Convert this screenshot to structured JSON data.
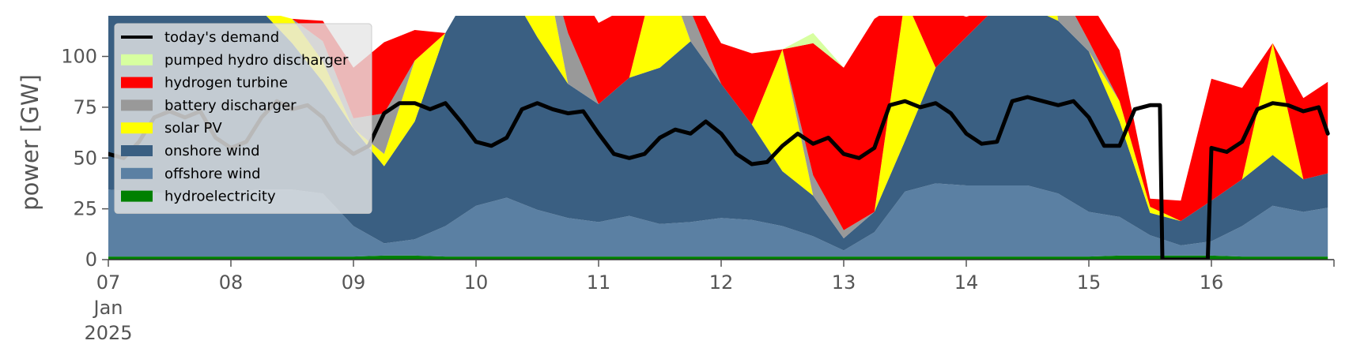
{
  "chart_data": {
    "type": "area",
    "ylabel": "power [GW]",
    "ylim": [
      0,
      120
    ],
    "yticks": [
      0,
      25,
      50,
      75,
      100
    ],
    "xlim": [
      7,
      17
    ],
    "xticks": [
      {
        "x": 7,
        "lines": [
          "07",
          "Jan",
          "2025"
        ]
      },
      {
        "x": 8,
        "lines": [
          "08"
        ]
      },
      {
        "x": 9,
        "lines": [
          "09"
        ]
      },
      {
        "x": 10,
        "lines": [
          "10"
        ]
      },
      {
        "x": 11,
        "lines": [
          "11"
        ]
      },
      {
        "x": 12,
        "lines": [
          "12"
        ]
      },
      {
        "x": 13,
        "lines": [
          "13"
        ]
      },
      {
        "x": 14,
        "lines": [
          "14"
        ]
      },
      {
        "x": 15,
        "lines": [
          "15"
        ]
      },
      {
        "x": 16,
        "lines": [
          "16"
        ]
      }
    ],
    "grid": false,
    "legend_position": "top-left",
    "x": [
      7.0,
      7.25,
      7.5,
      7.75,
      8.0,
      8.25,
      8.5,
      8.75,
      9.0,
      9.25,
      9.5,
      9.75,
      10.0,
      10.25,
      10.5,
      10.75,
      11.0,
      11.25,
      11.5,
      11.75,
      12.0,
      12.25,
      12.5,
      12.75,
      13.0,
      13.25,
      13.5,
      13.75,
      14.0,
      14.25,
      14.5,
      14.75,
      15.0,
      15.25,
      15.5,
      15.75,
      16.0,
      16.25,
      16.5,
      16.75,
      16.95
    ],
    "stack": [
      {
        "name": "hydroelectricity",
        "color": "#008000",
        "values": [
          1.5,
          1.5,
          1.5,
          1.5,
          1.5,
          1.5,
          1.5,
          1.5,
          1.5,
          2.0,
          2.0,
          1.5,
          1.5,
          1.5,
          1.5,
          1.5,
          1.5,
          1.5,
          1.5,
          1.5,
          1.5,
          1.5,
          1.5,
          1.5,
          1.5,
          1.5,
          1.5,
          1.5,
          1.5,
          1.5,
          1.5,
          1.5,
          1.5,
          2.0,
          2.0,
          2.0,
          2.0,
          1.5,
          1.5,
          1.5,
          1.5
        ]
      },
      {
        "name": "offshore wind",
        "color": "#5b80a3",
        "values": [
          33,
          32,
          31,
          31,
          32,
          33,
          33,
          31,
          15,
          6,
          8,
          15,
          25,
          29,
          23,
          19,
          17,
          20,
          16,
          17,
          19,
          18,
          15,
          10,
          3,
          12,
          32,
          36,
          35,
          35,
          35,
          31,
          22,
          19,
          10,
          5,
          7,
          15,
          25,
          22,
          24
        ]
      },
      {
        "name": "onshore wind",
        "color": "#3a5f82",
        "values": [
          125,
          125,
          125,
          122,
          98,
          88,
          72,
          55,
          48,
          38,
          58,
          95,
          111,
          105,
          85,
          66,
          58,
          68,
          77,
          89,
          66,
          47,
          27,
          20,
          6,
          10,
          25,
          57,
          73,
          88,
          88,
          85,
          79,
          47,
          11,
          12,
          20,
          23,
          25,
          16,
          17
        ]
      },
      {
        "name": "solar PV",
        "color": "#ffff00",
        "values": [
          0,
          0,
          5,
          10,
          0,
          0,
          12,
          10,
          0,
          6,
          30,
          0,
          0,
          0,
          55,
          0,
          0,
          0,
          55,
          0,
          0,
          0,
          60,
          0,
          0,
          0,
          70,
          0,
          0,
          0,
          95,
          0,
          0,
          10,
          3,
          0,
          0,
          0,
          55,
          0,
          0
        ]
      },
      {
        "name": "battery discharger",
        "color": "#999999",
        "values": [
          0,
          0,
          0,
          0,
          0,
          0,
          0,
          10,
          5,
          20,
          0,
          0,
          0,
          0,
          0,
          25,
          0,
          0,
          0,
          15,
          0,
          0,
          0,
          10,
          4,
          0,
          0,
          0,
          0,
          0,
          0,
          18,
          5,
          0,
          0,
          0,
          0,
          0,
          0,
          0,
          0
        ]
      },
      {
        "name": "hydrogen turbine",
        "color": "#ff0000",
        "values": [
          0,
          0,
          0,
          0,
          0,
          0,
          0,
          10,
          25,
          35,
          15,
          0,
          0,
          0,
          30,
          30,
          40,
          35,
          20,
          10,
          20,
          35,
          0,
          65,
          80,
          95,
          0,
          30,
          10,
          0,
          0,
          40,
          20,
          25,
          4,
          10,
          60,
          45,
          0,
          40,
          45
        ]
      },
      {
        "name": "pumped hydro discharger",
        "color": "#d7ffa0",
        "values": [
          0,
          0,
          0,
          0,
          0,
          0,
          0,
          0,
          0,
          0,
          0,
          0,
          0,
          0,
          0,
          0,
          0,
          0,
          0,
          0,
          0,
          0,
          0,
          5,
          0,
          0,
          0,
          0,
          0,
          0,
          0,
          0,
          0,
          0,
          0,
          0,
          0,
          0,
          0,
          0,
          0
        ]
      }
    ],
    "demand": {
      "name": "today's demand",
      "color": "#000000",
      "x": [
        7.0,
        7.125,
        7.25,
        7.375,
        7.5,
        7.625,
        7.75,
        7.875,
        8.0,
        8.125,
        8.25,
        8.375,
        8.5,
        8.625,
        8.75,
        8.875,
        9.0,
        9.125,
        9.25,
        9.375,
        9.5,
        9.625,
        9.75,
        9.875,
        10.0,
        10.125,
        10.25,
        10.375,
        10.5,
        10.625,
        10.75,
        10.875,
        11.0,
        11.125,
        11.25,
        11.375,
        11.5,
        11.625,
        11.75,
        11.875,
        12.0,
        12.125,
        12.25,
        12.375,
        12.5,
        12.625,
        12.75,
        12.875,
        13.0,
        13.125,
        13.25,
        13.375,
        13.5,
        13.625,
        13.75,
        13.875,
        14.0,
        14.125,
        14.25,
        14.375,
        14.5,
        14.625,
        14.75,
        14.875,
        15.0,
        15.125,
        15.25,
        15.375,
        15.5,
        15.58,
        15.6,
        15.75,
        15.97,
        16.0,
        16.125,
        16.25,
        16.375,
        16.5,
        16.625,
        16.75,
        16.875,
        16.95
      ],
      "values": [
        52,
        50,
        58,
        70,
        73,
        70,
        73,
        60,
        55,
        58,
        70,
        78,
        74,
        76,
        70,
        58,
        52,
        56,
        72,
        77,
        77,
        74,
        77,
        68,
        58,
        56,
        60,
        74,
        77,
        74,
        72,
        73,
        62,
        52,
        50,
        52,
        60,
        64,
        62,
        68,
        62,
        52,
        47,
        48,
        56,
        62,
        57,
        60,
        52,
        50,
        55,
        76,
        78,
        75,
        77,
        72,
        62,
        57,
        58,
        78,
        80,
        78,
        76,
        78,
        70,
        56,
        56,
        74,
        76,
        76,
        0,
        0,
        0,
        55,
        53,
        58,
        74,
        77,
        76,
        73,
        75,
        62
      ]
    }
  }
}
